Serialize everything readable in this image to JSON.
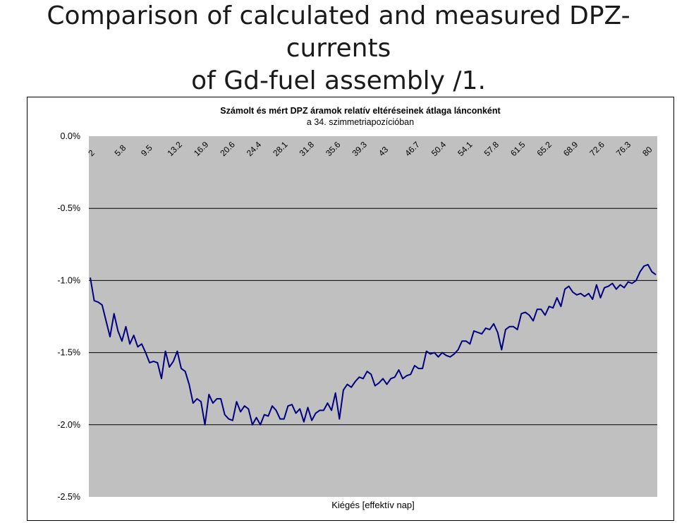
{
  "slide": {
    "title_line1": "Comparison of calculated and measured DPZ-currents",
    "title_line2": "of Gd-fuel assembly /1."
  },
  "chart_data": {
    "type": "line",
    "title_line1": "Számolt és mért DPZ áramok relatív eltéréseinek átlaga lánconként",
    "title_line2": "a 34. szimmetriapozícióban",
    "xlabel": "Kiégés [effektív nap]",
    "ylabel": "",
    "x_tick_labels": [
      "2",
      "5.8",
      "9.5",
      "13.2",
      "16.9",
      "20.6",
      "24.4",
      "28.1",
      "31.8",
      "35.6",
      "39.3",
      "43",
      "46.7",
      "50.4",
      "54.1",
      "57.8",
      "61.5",
      "65.2",
      "68.9",
      "72.6",
      "76.3",
      "80"
    ],
    "y_tick_labels": [
      "0.0%",
      "-0.5%",
      "-1.0%",
      "-1.5%",
      "-2.0%",
      "-2.5%"
    ],
    "ylim": [
      -2.5,
      0.0
    ],
    "grid": "horizontal",
    "plot_background": "#c0c0c0",
    "line_color": "#000080",
    "values": [
      -0.98,
      -1.14,
      -1.15,
      -1.17,
      -1.28,
      -1.39,
      -1.23,
      -1.35,
      -1.42,
      -1.32,
      -1.44,
      -1.38,
      -1.46,
      -1.44,
      -1.5,
      -1.57,
      -1.56,
      -1.57,
      -1.68,
      -1.49,
      -1.6,
      -1.56,
      -1.49,
      -1.61,
      -1.63,
      -1.72,
      -1.85,
      -1.82,
      -1.84,
      -2.0,
      -1.79,
      -1.85,
      -1.82,
      -1.82,
      -1.93,
      -1.96,
      -1.97,
      -1.84,
      -1.91,
      -1.87,
      -1.89,
      -2.0,
      -1.95,
      -2.0,
      -1.93,
      -1.94,
      -1.87,
      -1.9,
      -1.96,
      -1.96,
      -1.87,
      -1.86,
      -1.92,
      -1.89,
      -1.98,
      -1.88,
      -1.97,
      -1.92,
      -1.9,
      -1.9,
      -1.85,
      -1.9,
      -1.78,
      -1.96,
      -1.76,
      -1.72,
      -1.74,
      -1.7,
      -1.67,
      -1.68,
      -1.63,
      -1.65,
      -1.73,
      -1.71,
      -1.68,
      -1.72,
      -1.68,
      -1.67,
      -1.62,
      -1.68,
      -1.66,
      -1.65,
      -1.59,
      -1.61,
      -1.61,
      -1.49,
      -1.51,
      -1.5,
      -1.53,
      -1.5,
      -1.52,
      -1.53,
      -1.51,
      -1.48,
      -1.42,
      -1.42,
      -1.44,
      -1.35,
      -1.36,
      -1.37,
      -1.33,
      -1.34,
      -1.3,
      -1.36,
      -1.48,
      -1.34,
      -1.32,
      -1.32,
      -1.34,
      -1.23,
      -1.22,
      -1.24,
      -1.28,
      -1.2,
      -1.2,
      -1.24,
      -1.18,
      -1.19,
      -1.12,
      -1.18,
      -1.06,
      -1.04,
      -1.08,
      -1.1,
      -1.09,
      -1.11,
      -1.09,
      -1.13,
      -1.03,
      -1.12,
      -1.05,
      -1.04,
      -1.02,
      -1.06,
      -1.03,
      -1.05,
      -1.01,
      -1.02,
      -1.0,
      -0.94,
      -0.9,
      -0.89,
      -0.94,
      -0.96
    ]
  }
}
